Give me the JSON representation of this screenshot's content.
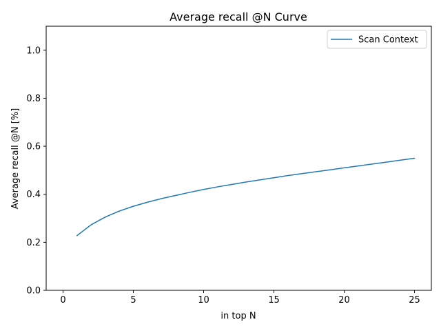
{
  "chart_data": {
    "type": "line",
    "title": "Average recall @N Curve",
    "xlabel": "in top N",
    "ylabel": "Average recall @N [%]",
    "xlim": [
      -1.2,
      26.2
    ],
    "ylim": [
      0.0,
      1.1
    ],
    "xticks": [
      0,
      5,
      10,
      15,
      20,
      25
    ],
    "yticks": [
      0.0,
      0.2,
      0.4,
      0.6,
      0.8,
      1.0
    ],
    "xtick_labels": [
      "0",
      "5",
      "10",
      "15",
      "20",
      "25"
    ],
    "ytick_labels": [
      "0.0",
      "0.2",
      "0.4",
      "0.6",
      "0.8",
      "1.0"
    ],
    "grid": false,
    "legend_position": "top-right",
    "x": [
      1,
      2,
      3,
      4,
      5,
      6,
      7,
      8,
      9,
      10,
      11,
      12,
      13,
      14,
      15,
      16,
      17,
      18,
      19,
      20,
      21,
      22,
      23,
      24,
      25
    ],
    "series": [
      {
        "name": "Scan Context",
        "color": "#1f77b4",
        "values": [
          0.228,
          0.273,
          0.305,
          0.33,
          0.35,
          0.367,
          0.382,
          0.395,
          0.408,
          0.42,
          0.431,
          0.441,
          0.451,
          0.46,
          0.469,
          0.478,
          0.486,
          0.494,
          0.502,
          0.51,
          0.518,
          0.526,
          0.534,
          0.542,
          0.55
        ]
      }
    ]
  }
}
